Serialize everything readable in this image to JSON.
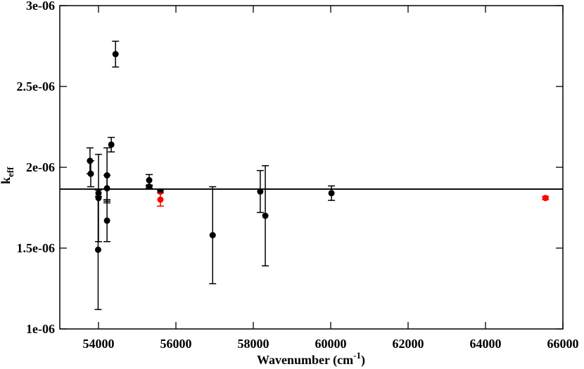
{
  "chart_data": {
    "type": "scatter",
    "x_label": {
      "text": "Wavenumber (cm",
      "sup": "-1",
      "close": ")"
    },
    "y_label": {
      "base": "k",
      "sub": "eff"
    },
    "xlim": [
      53000,
      66000
    ],
    "xticks": [
      54000,
      56000,
      58000,
      60000,
      62000,
      64000,
      66000
    ],
    "ylim": [
      1e-06,
      3e-06
    ],
    "yticks": [
      {
        "value": 1e-06,
        "label": "1e-06"
      },
      {
        "value": 1.5e-06,
        "label": "1.5e-06"
      },
      {
        "value": 2e-06,
        "label": "2e-06"
      },
      {
        "value": 2.5e-06,
        "label": "2.5e-06"
      },
      {
        "value": 3e-06,
        "label": "3e-06"
      }
    ],
    "hline": 1.865e-06,
    "series": [
      {
        "color": "#000000",
        "x": [
          53780,
          53800,
          54000,
          54000,
          53990,
          54220,
          54220,
          54220,
          54330,
          54440,
          55310,
          55310,
          55600,
          56950,
          58180,
          58310,
          60020
        ],
        "values": [
          2.04e-06,
          1.96e-06,
          1.84e-06,
          1.81e-06,
          1.49e-06,
          1.95e-06,
          1.87e-06,
          1.67e-06,
          2.14e-06,
          2.7e-06,
          1.92e-06,
          1.88e-06,
          1.85e-06,
          1.58e-06,
          1.85e-06,
          1.7e-06,
          1.84e-06
        ],
        "errors": [
          8e-08,
          8e-08,
          2e-08,
          2.7e-07,
          3.7e-07,
          1.7e-07,
          8e-08,
          1.3e-07,
          4.5e-08,
          8e-08,
          3.5e-08,
          1e-08,
          1e-08,
          3e-07,
          1.3e-07,
          3.1e-07,
          4.5e-08
        ]
      },
      {
        "color": "#ff0000",
        "x": [
          55600,
          65550
        ],
        "values": [
          1.8e-06,
          1.81e-06
        ],
        "errors": [
          4e-08,
          1e-08
        ]
      }
    ]
  }
}
